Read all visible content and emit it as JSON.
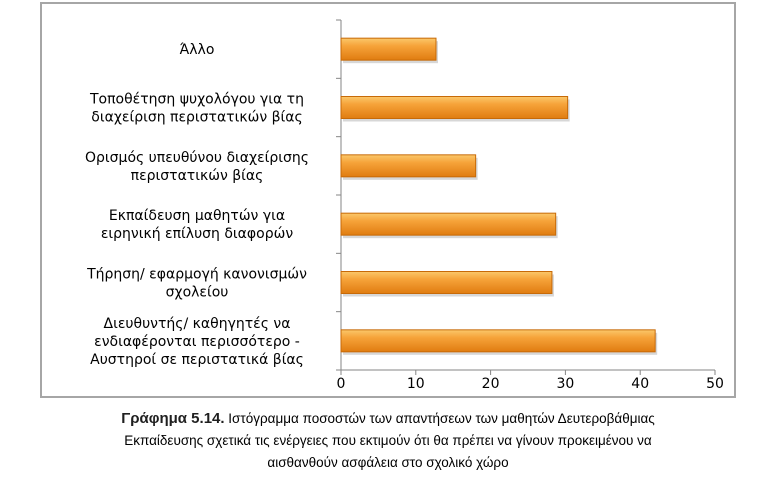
{
  "chart_data": {
    "type": "bar",
    "orientation": "horizontal",
    "categories": [
      [
        "Άλλο"
      ],
      [
        "Τοποθέτηση ψυχολόγου για τη",
        "διαχείριση περιστατικών βίας"
      ],
      [
        "Ορισμός υπευθύνου διαχείρισης",
        "περιστατικών βίας"
      ],
      [
        "Εκπαίδευση μαθητών για",
        "ειρηνική επίλυση διαφορών"
      ],
      [
        "Τήρηση/ εφαρμογή κανονισμών",
        "σχολείου"
      ],
      [
        "Διευθυντής/ καθηγητές να",
        "ενδιαφέρονται περισσότερο -",
        "Αυστηροί σε περιστατικά βίας"
      ]
    ],
    "values": [
      12.7,
      30.3,
      18.0,
      28.7,
      28.2,
      42.0
    ],
    "xlim": [
      0,
      50
    ],
    "xticks": [
      "0",
      "10",
      "20",
      "30",
      "40",
      "50"
    ],
    "bar_color": "#f0921e",
    "grid": false,
    "legend": "none"
  },
  "caption": {
    "title": "Γράφημα 5.14.",
    "line1": " Ιστόγραμμα ποσοστών των απαντήσεων των μαθητών Δευτεροβάθμιας",
    "line2": "Εκπαίδευσης σχετικά τις ενέργειες που εκτιμούν ότι θα πρέπει να γίνουν προκειμένου να",
    "line3": "αισθανθούν ασφάλεια στο σχολικό χώρο"
  }
}
